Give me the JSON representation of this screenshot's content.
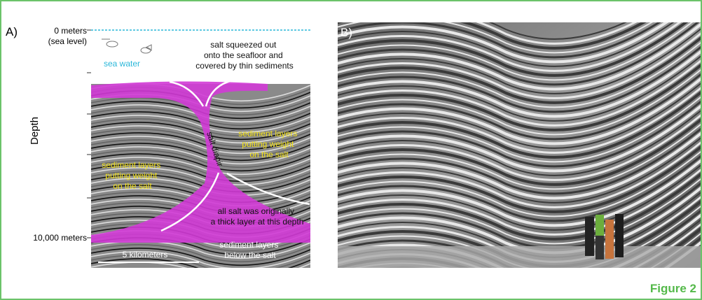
{
  "panel_a": {
    "label": "A)",
    "top_label": "0 meters",
    "top_sublabel": "(sea level)",
    "axis_title": "Depth",
    "bottom_label": "10,000 meters",
    "sea_label": "sea water",
    "annotations": [
      {
        "lines": [
          "salt squeezed out",
          "onto the seafloor and",
          "covered by thin sediments"
        ]
      },
      {
        "lines": [
          "sediment layers",
          "putting weight",
          "on the salt"
        ]
      },
      {
        "lines": [
          "sediment layers",
          "putting weight",
          "on the salt"
        ]
      },
      {
        "lines": [
          "salt diapir"
        ]
      },
      {
        "lines": [
          "all salt was originally",
          "a thick layer at this depth"
        ]
      },
      {
        "lines": [
          "sediment layers",
          "below the salt"
        ]
      }
    ],
    "scale_bar": "5 kilometers"
  },
  "panel_b": {
    "label": "B)"
  },
  "figure_label": "Figure 2"
}
